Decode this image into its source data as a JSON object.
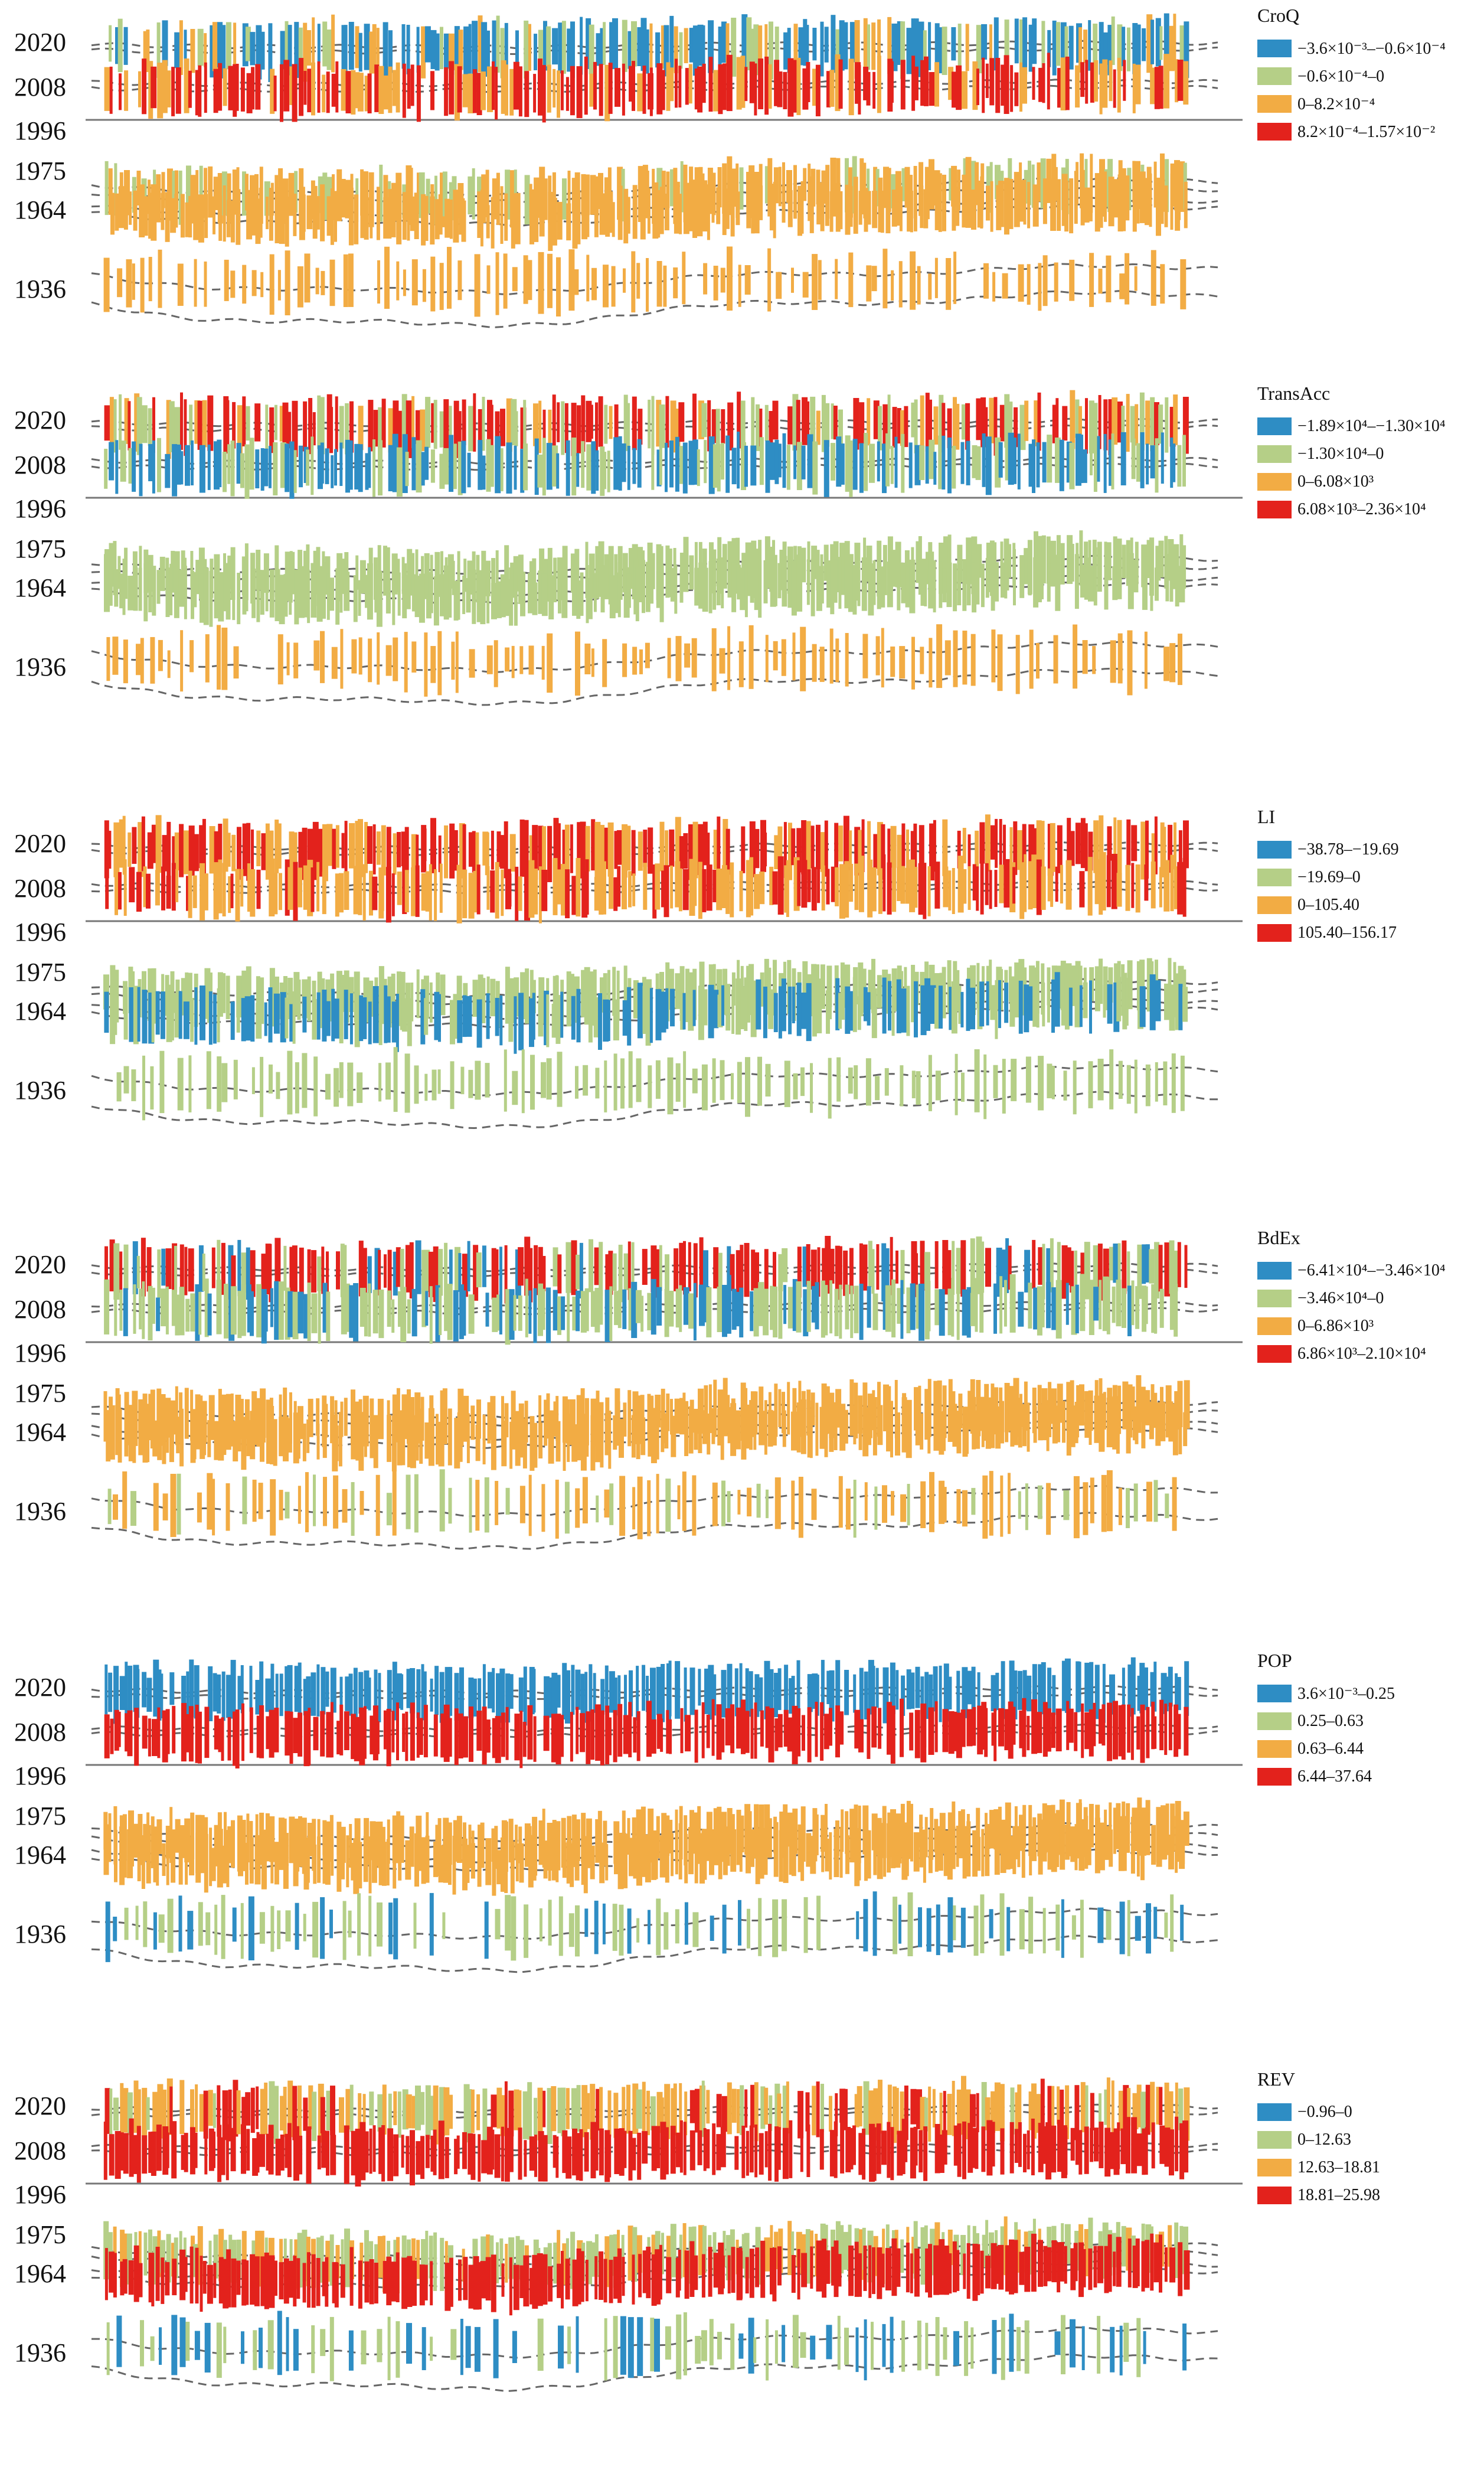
{
  "chart_data": [
    {
      "type": "bar",
      "title": "CroQ",
      "years": [
        "2020",
        "2008",
        "1996",
        "1975",
        "1964",
        "1936"
      ],
      "legend": [
        {
          "label": "−3.6×10⁻³–−0.6×10⁻⁴",
          "color": "#2e8dc4"
        },
        {
          "label": "−0.6×10⁻⁴–0",
          "color": "#b5cf87"
        },
        {
          "label": "0–8.2×10⁻⁴",
          "color": "#f2ac44"
        },
        {
          "label": "8.2×10⁻⁴–1.57×10⁻²",
          "color": "#e3221c"
        }
      ],
      "class_by_period": {
        "2020": [
          0,
          1,
          2,
          3
        ],
        "2008": [
          3,
          2
        ],
        "1975": [
          2,
          1
        ],
        "1964": [
          2
        ],
        "1936": [
          2
        ]
      }
    },
    {
      "type": "bar",
      "title": "TransAcc",
      "years": [
        "2020",
        "2008",
        "1996",
        "1975",
        "1964",
        "1936"
      ],
      "legend": [
        {
          "label": "−1.89×10⁴–−1.30×10⁴",
          "color": "#2e8dc4"
        },
        {
          "label": "−1.30×10⁴–0",
          "color": "#b5cf87"
        },
        {
          "label": "0–6.08×10³",
          "color": "#f2ac44"
        },
        {
          "label": "6.08×10³–2.36×10⁴",
          "color": "#e3221c"
        }
      ],
      "class_by_period": {
        "2020": [
          3,
          1,
          2
        ],
        "2008": [
          0,
          1
        ],
        "1975": [
          1
        ],
        "1964": [
          1
        ],
        "1936": [
          2
        ]
      }
    },
    {
      "type": "bar",
      "title": "LI",
      "years": [
        "2020",
        "2008",
        "1996",
        "1975",
        "1964",
        "1936"
      ],
      "legend": [
        {
          "label": "−38.78–−19.69",
          "color": "#2e8dc4"
        },
        {
          "label": "−19.69–0",
          "color": "#b5cf87"
        },
        {
          "label": "0–105.40",
          "color": "#f2ac44"
        },
        {
          "label": "105.40–156.17",
          "color": "#e3221c"
        }
      ],
      "class_by_period": {
        "2020": [
          3,
          2
        ],
        "2008": [
          2,
          3
        ],
        "1975": [
          1
        ],
        "1964": [
          0,
          1
        ],
        "1936": [
          1
        ]
      }
    },
    {
      "type": "bar",
      "title": "BdEx",
      "years": [
        "2020",
        "2008",
        "1996",
        "1975",
        "1964",
        "1936"
      ],
      "legend": [
        {
          "label": "−6.41×10⁴–−3.46×10⁴",
          "color": "#2e8dc4"
        },
        {
          "label": "−3.46×10⁴–0",
          "color": "#b5cf87"
        },
        {
          "label": "0–6.86×10³",
          "color": "#f2ac44"
        },
        {
          "label": "6.86×10³–2.10×10⁴",
          "color": "#e3221c"
        }
      ],
      "class_by_period": {
        "2020": [
          3,
          1,
          0
        ],
        "2008": [
          1,
          0
        ],
        "1975": [
          2
        ],
        "1964": [
          2
        ],
        "1936": [
          2,
          1
        ]
      }
    },
    {
      "type": "bar",
      "title": "POP",
      "years": [
        "2020",
        "2008",
        "1996",
        "1975",
        "1964",
        "1936"
      ],
      "legend": [
        {
          "label": "3.6×10⁻³–0.25",
          "color": "#2e8dc4"
        },
        {
          "label": "0.25–0.63",
          "color": "#b5cf87"
        },
        {
          "label": "0.63–6.44",
          "color": "#f2ac44"
        },
        {
          "label": "6.44–37.64",
          "color": "#e3221c"
        }
      ],
      "class_by_period": {
        "2020": [
          0
        ],
        "2008": [
          3
        ],
        "1975": [
          2
        ],
        "1964": [
          2
        ],
        "1936": [
          1,
          0
        ]
      }
    },
    {
      "type": "bar",
      "title": "REV",
      "years": [
        "2020",
        "2008",
        "1996",
        "1975",
        "1964",
        "1936"
      ],
      "legend": [
        {
          "label": "−0.96–0",
          "color": "#2e8dc4"
        },
        {
          "label": "0–12.63",
          "color": "#b5cf87"
        },
        {
          "label": "12.63–18.81",
          "color": "#f2ac44"
        },
        {
          "label": "18.81–25.98",
          "color": "#e3221c"
        }
      ],
      "class_by_period": {
        "2020": [
          2,
          1,
          3
        ],
        "2008": [
          3
        ],
        "1975": [
          1,
          2
        ],
        "1964": [
          3
        ],
        "1936": [
          1,
          0
        ]
      }
    }
  ]
}
